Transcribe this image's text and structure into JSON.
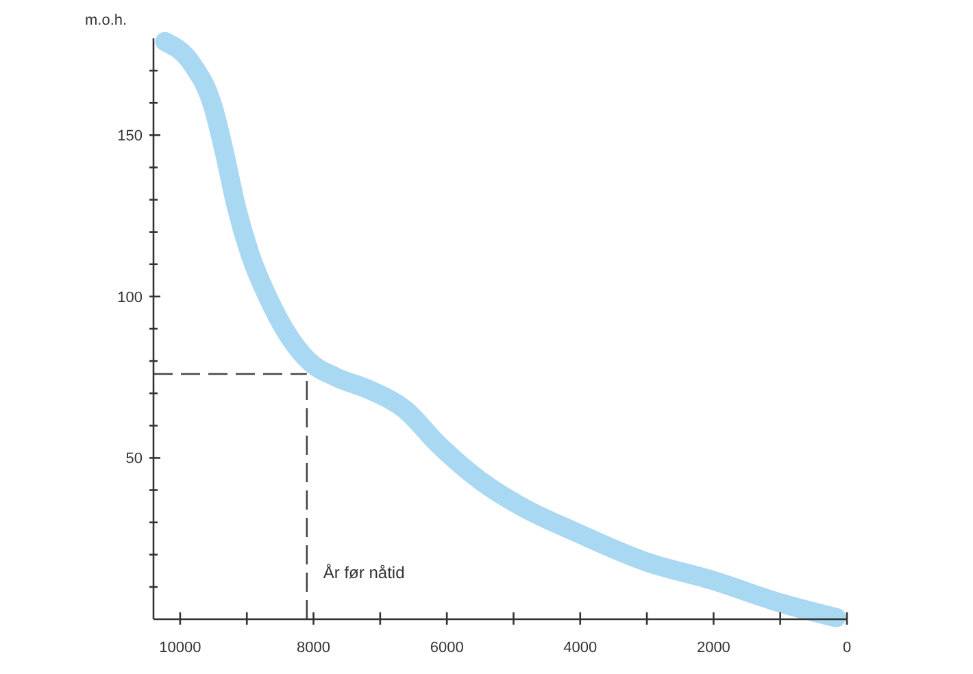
{
  "chart_data": {
    "type": "line",
    "xlabel": "År før nåtid",
    "ylabel": "m.o.h.",
    "x": [
      10230,
      9820,
      9510,
      9340,
      9160,
      8950,
      8690,
      8380,
      8070,
      7660,
      7150,
      6630,
      6120,
      5500,
      4890,
      4070,
      3040,
      2010,
      990,
      160
    ],
    "series": [
      {
        "color": "#a8d8f2",
        "values": [
          179,
          172,
          159,
          145,
          128,
          113,
          100,
          88,
          80,
          75,
          71,
          65,
          54,
          43,
          35,
          27,
          18,
          12,
          5,
          0.5
        ]
      }
    ],
    "xlim": [
      10400,
      0
    ],
    "ylim": [
      0,
      180
    ],
    "xticks": [
      10000,
      {
        "value": 9000,
        "label": null
      },
      8000,
      {
        "value": 7000,
        "label": null
      },
      6000,
      {
        "value": 5000,
        "label": null
      },
      4000,
      {
        "value": 3000,
        "label": null
      },
      2000,
      {
        "value": 1000,
        "label": null
      },
      0
    ],
    "yticks": [
      {
        "value": 10,
        "label": null
      },
      {
        "value": 20,
        "label": null
      },
      {
        "value": 30,
        "label": null
      },
      {
        "value": 40,
        "label": null
      },
      50,
      {
        "value": 60,
        "label": null
      },
      {
        "value": 70,
        "label": null
      },
      {
        "value": 80,
        "label": null
      },
      {
        "value": 90,
        "label": null
      },
      100,
      {
        "value": 110,
        "label": null
      },
      {
        "value": 120,
        "label": null
      },
      {
        "value": 130,
        "label": null
      },
      {
        "value": 140,
        "label": null
      },
      150,
      {
        "value": 160,
        "label": null
      },
      {
        "value": 170,
        "label": null
      }
    ],
    "ref_lines": [
      {
        "axis": "y",
        "value": 76,
        "line_style": "dashed",
        "color": "#444444"
      },
      {
        "axis": "x",
        "value": 8100,
        "line_style": "dashed",
        "color": "#444444"
      }
    ],
    "line_style": "solid"
  }
}
